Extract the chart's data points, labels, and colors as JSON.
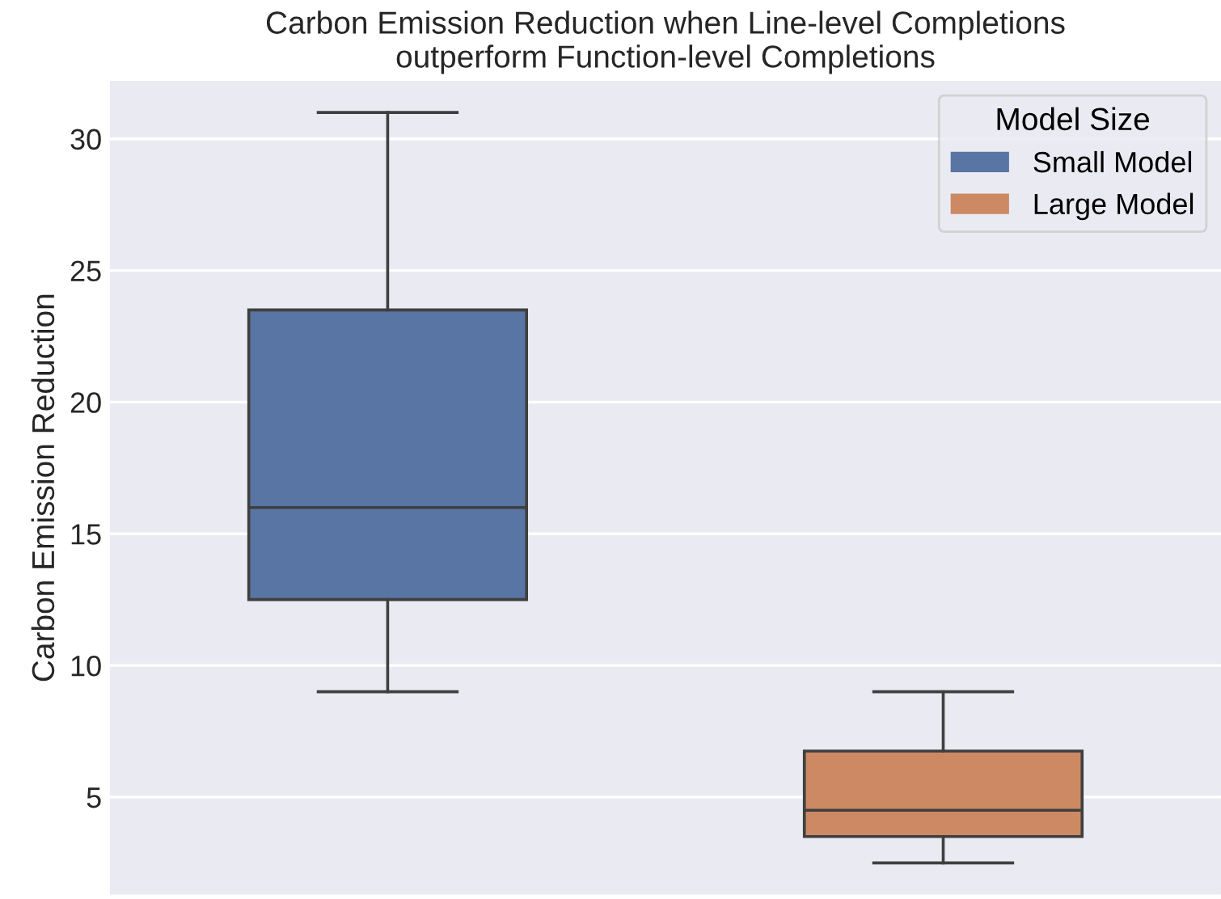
{
  "chart_data": {
    "type": "box",
    "title": "Carbon Emission Reduction when Line-level Completions\noutperform Function-level Completions",
    "ylabel": "Carbon Emission Reduction",
    "legend_title": "Model Size",
    "categories": [
      null,
      null
    ],
    "series": [
      {
        "name": "Small Model",
        "color": "#5875a4",
        "boxes": [
          {
            "low": 9,
            "q1": 12.5,
            "median": 16,
            "q3": 23.5,
            "high": 31
          },
          null
        ]
      },
      {
        "name": "Large Model",
        "color": "#cc8963",
        "boxes": [
          null,
          {
            "low": 2.5,
            "q1": 3.5,
            "median": 4.5,
            "q3": 6.75,
            "high": 9
          }
        ]
      }
    ],
    "ylim": [
      1.3,
      32.2
    ],
    "yticks": [
      5,
      10,
      15,
      20,
      25,
      30
    ],
    "grid": "y",
    "legend": "top right"
  }
}
